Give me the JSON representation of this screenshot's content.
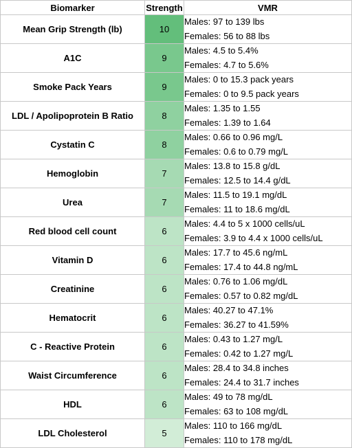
{
  "headers": {
    "biomarker": "Biomarker",
    "strength": "Strength",
    "vmr": "VMR"
  },
  "colors": {
    "s10": "#63be7b",
    "s9": "#79c88d",
    "s8": "#8fd1a0",
    "s7": "#a6dab3",
    "s6": "#bde4c6",
    "s5": "#d2edd7"
  },
  "rows": [
    {
      "biomarker": "Mean Grip Strength (lb)",
      "strength": "10",
      "males": "Males: 97 to 139 lbs",
      "females": "Females: 56 to 88 lbs"
    },
    {
      "biomarker": "A1C",
      "strength": "9",
      "males": "Males: 4.5 to 5.4%",
      "females": "Females: 4.7 to 5.6%"
    },
    {
      "biomarker": "Smoke Pack Years",
      "strength": "9",
      "males": "Males: 0 to 15.3 pack years",
      "females": "Females: 0 to 9.5 pack years"
    },
    {
      "biomarker": "LDL / Apolipoprotein B Ratio",
      "strength": "8",
      "males": "Males: 1.35 to 1.55",
      "females": "Females: 1.39 to 1.64"
    },
    {
      "biomarker": "Cystatin C",
      "strength": "8",
      "males": "Males: 0.66 to 0.96 mg/L",
      "females": "Females: 0.6 to 0.79 mg/L"
    },
    {
      "biomarker": "Hemoglobin",
      "strength": "7",
      "males": "Males: 13.8 to 15.8 g/dL",
      "females": "Females: 12.5 to 14.4 g/dL"
    },
    {
      "biomarker": "Urea",
      "strength": "7",
      "males": "Males: 11.5 to 19.1 mg/dL",
      "females": "Females: 11 to 18.6 mg/dL"
    },
    {
      "biomarker": "Red blood cell count",
      "strength": "6",
      "males": "Males: 4.4 to 5 x 1000 cells/uL",
      "females": "Females: 3.9 to 4.4 x 1000 cells/uL"
    },
    {
      "biomarker": "Vitamin D",
      "strength": "6",
      "males": "Males: 17.7 to 45.6 ng/mL",
      "females": "Females: 17.4 to 44.8 ng/mL"
    },
    {
      "biomarker": "Creatinine",
      "strength": "6",
      "males": "Males: 0.76 to 1.06 mg/dL",
      "females": "Females: 0.57 to 0.82 mg/dL"
    },
    {
      "biomarker": "Hematocrit",
      "strength": "6",
      "males": "Males: 40.27 to 47.1%",
      "females": "Females: 36.27 to 41.59%"
    },
    {
      "biomarker": "C - Reactive Protein",
      "strength": "6",
      "males": "Males: 0.43 to 1.27 mg/L",
      "females": "Females: 0.42 to 1.27 mg/L"
    },
    {
      "biomarker": "Waist Circumference",
      "strength": "6",
      "males": "Males: 28.4 to 34.8 inches",
      "females": "Females: 24.4 to 31.7 inches"
    },
    {
      "biomarker": "HDL",
      "strength": "6",
      "males": "Males: 49 to 78 mg/dL",
      "females": "Females: 63 to 108 mg/dL"
    },
    {
      "biomarker": "LDL Cholesterol",
      "strength": "5",
      "males": "Males: 110 to 166 mg/dL",
      "females": "Females: 110 to 178 mg/dL"
    }
  ]
}
